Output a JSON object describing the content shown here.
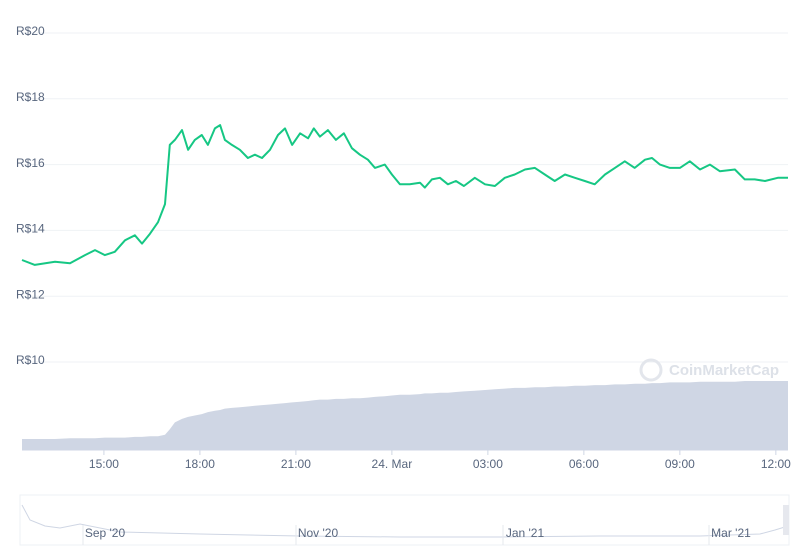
{
  "chart_data": {
    "type": "line",
    "yticks": [
      {
        "value": 20,
        "label": "R$20"
      },
      {
        "value": 18,
        "label": "R$18"
      },
      {
        "value": 16,
        "label": "R$16"
      },
      {
        "value": 14,
        "label": "R$14"
      },
      {
        "value": 12,
        "label": "R$12"
      },
      {
        "value": 10,
        "label": "R$10"
      }
    ],
    "ylim": [
      10,
      20
    ],
    "xlim": [
      12.44,
      36.38
    ],
    "xticks": [
      {
        "value": 15,
        "label": "15:00"
      },
      {
        "value": 18,
        "label": "18:00"
      },
      {
        "value": 21,
        "label": "21:00"
      },
      {
        "value": 24,
        "label": "24. Mar"
      },
      {
        "value": 27,
        "label": "03:00"
      },
      {
        "value": 30,
        "label": "06:00"
      },
      {
        "value": 33,
        "label": "09:00"
      },
      {
        "value": 36,
        "label": "12:00"
      }
    ],
    "grid": true,
    "x": [
      12.44,
      12.84,
      13.47,
      13.94,
      14.41,
      14.72,
      15.03,
      15.34,
      15.66,
      15.97,
      16.19,
      16.44,
      16.69,
      16.91,
      17.06,
      17.22,
      17.44,
      17.63,
      17.84,
      18.06,
      18.25,
      18.47,
      18.63,
      18.78,
      19.0,
      19.25,
      19.5,
      19.72,
      19.94,
      20.19,
      20.44,
      20.66,
      20.88,
      21.13,
      21.38,
      21.56,
      21.75,
      22.0,
      22.25,
      22.5,
      22.75,
      23.0,
      23.25,
      23.47,
      23.78,
      24.0,
      24.25,
      24.56,
      24.88,
      25.03,
      25.25,
      25.5,
      25.75,
      26.0,
      26.25,
      26.59,
      26.91,
      27.22,
      27.53,
      27.84,
      28.16,
      28.47,
      28.78,
      29.09,
      29.41,
      29.72,
      30.03,
      30.34,
      30.66,
      30.97,
      31.28,
      31.59,
      31.91,
      32.13,
      32.38,
      32.69,
      33.0,
      33.31,
      33.63,
      33.94,
      34.25,
      34.72,
      35.03,
      35.34,
      35.66,
      36.06,
      36.38
    ],
    "series": [
      {
        "color": "#16c784",
        "values": [
          13.1,
          12.95,
          13.05,
          13.0,
          13.25,
          13.4,
          13.25,
          13.35,
          13.7,
          13.85,
          13.6,
          13.9,
          14.25,
          14.8,
          16.6,
          16.75,
          17.05,
          16.45,
          16.75,
          16.9,
          16.6,
          17.1,
          17.2,
          16.75,
          16.6,
          16.45,
          16.2,
          16.3,
          16.2,
          16.45,
          16.9,
          17.1,
          16.6,
          16.95,
          16.8,
          17.1,
          16.85,
          17.05,
          16.75,
          16.95,
          16.5,
          16.3,
          16.15,
          15.9,
          16.0,
          15.7,
          15.4,
          15.4,
          15.45,
          15.3,
          15.55,
          15.6,
          15.4,
          15.5,
          15.35,
          15.6,
          15.4,
          15.35,
          15.6,
          15.7,
          15.85,
          15.9,
          15.7,
          15.5,
          15.7,
          15.6,
          15.5,
          15.4,
          15.7,
          15.9,
          16.1,
          15.9,
          16.15,
          16.2,
          16.0,
          15.9,
          15.9,
          16.1,
          15.85,
          16.0,
          15.8,
          15.85,
          15.55,
          15.55,
          15.5,
          15.6,
          15.6
        ]
      }
    ],
    "volume": {
      "color": "#cfd6e4",
      "vlim": [
        0,
        100
      ],
      "values": [
        16,
        16,
        16,
        17,
        17,
        17,
        18,
        18,
        18,
        19,
        19,
        20,
        20,
        22,
        30,
        40,
        45,
        48,
        50,
        52,
        55,
        57,
        58,
        60,
        61,
        62,
        63,
        64,
        65,
        66,
        67,
        68,
        69,
        70,
        71,
        72,
        73,
        73,
        74,
        74,
        75,
        75,
        76,
        77,
        78,
        79,
        80,
        80,
        81,
        82,
        82,
        83,
        83,
        84,
        85,
        86,
        87,
        88,
        89,
        90,
        90,
        91,
        91,
        92,
        92,
        93,
        93,
        94,
        94,
        95,
        95,
        96,
        96,
        97,
        97,
        98,
        98,
        98,
        99,
        99,
        99,
        99,
        100,
        100,
        100,
        100,
        100
      ]
    },
    "watermark": "CoinMarketCap",
    "navigator_labels": [
      "Sep '20",
      "Nov '20",
      "Jan '21",
      "Mar '21"
    ]
  }
}
